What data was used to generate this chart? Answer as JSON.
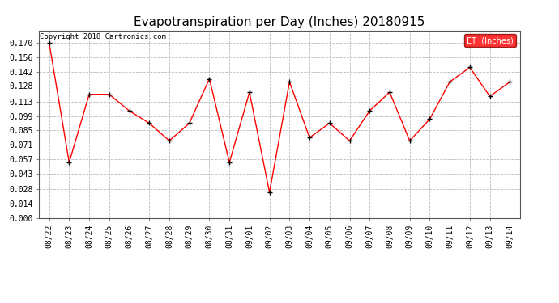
{
  "title": "Evapotranspiration per Day (Inches) 20180915",
  "copyright": "Copyright 2018 Cartronics.com",
  "legend_label": "ET  (Inches)",
  "x_labels": [
    "08/22",
    "08/23",
    "08/24",
    "08/25",
    "08/26",
    "08/27",
    "08/28",
    "08/29",
    "08/30",
    "08/31",
    "09/01",
    "09/02",
    "09/03",
    "09/04",
    "09/05",
    "09/06",
    "09/07",
    "09/08",
    "09/09",
    "09/10",
    "09/11",
    "09/12",
    "09/13",
    "09/14"
  ],
  "y_values": [
    0.17,
    0.054,
    0.12,
    0.12,
    0.104,
    0.092,
    0.075,
    0.092,
    0.135,
    0.054,
    0.122,
    0.025,
    0.132,
    0.078,
    0.092,
    0.075,
    0.104,
    0.122,
    0.075,
    0.096,
    0.132,
    0.146,
    0.118,
    0.132
  ],
  "line_color": "red",
  "marker": "+",
  "marker_color": "black",
  "ylim": [
    0.0,
    0.182
  ],
  "yticks": [
    0.0,
    0.014,
    0.028,
    0.043,
    0.057,
    0.071,
    0.085,
    0.099,
    0.113,
    0.128,
    0.142,
    0.156,
    0.17
  ],
  "grid_color": "#bbbbbb",
  "bg_color": "#ffffff",
  "plot_bg_color": "#ffffff",
  "legend_bg": "red",
  "legend_text_color": "white",
  "title_fontsize": 11,
  "axis_fontsize": 7,
  "copyright_fontsize": 6.5
}
